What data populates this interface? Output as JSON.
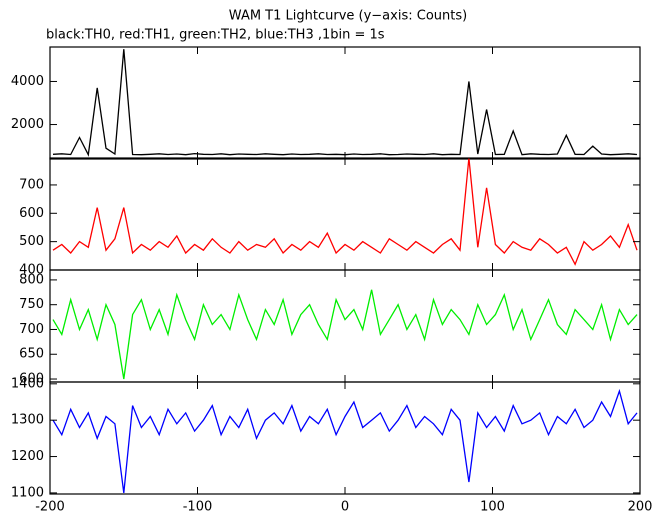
{
  "chart_data": [
    {
      "type": "line",
      "title": "WAM T1 Lightcurve (y−axis: Counts)",
      "subtitle": "black:TH0, red:TH1, green:TH2, blue:TH3 ,1bin = 1s",
      "color": "#000000",
      "xlim": [
        -200,
        200
      ],
      "xticks": [
        -200,
        -100,
        0,
        100,
        200
      ],
      "ylim": [
        400,
        5600
      ],
      "yticks": [
        2000,
        4000
      ],
      "x": [
        -198,
        -192,
        -186,
        -180,
        -174,
        -168,
        -162,
        -156,
        -150,
        -144,
        -138,
        -132,
        -126,
        -120,
        -114,
        -108,
        -102,
        -96,
        -90,
        -84,
        -78,
        -72,
        -66,
        -60,
        -54,
        -48,
        -42,
        -36,
        -30,
        -24,
        -18,
        -12,
        -6,
        0,
        6,
        12,
        18,
        24,
        30,
        36,
        42,
        48,
        54,
        60,
        66,
        72,
        78,
        84,
        90,
        96,
        102,
        108,
        114,
        120,
        126,
        132,
        138,
        144,
        150,
        156,
        162,
        168,
        174,
        180,
        186,
        192,
        198
      ],
      "values": [
        620,
        640,
        610,
        1400,
        600,
        3700,
        900,
        630,
        5500,
        610,
        600,
        620,
        640,
        610,
        630,
        600,
        650,
        620,
        610,
        640,
        600,
        630,
        620,
        610,
        640,
        620,
        600,
        630,
        610,
        620,
        640,
        610,
        620,
        600,
        630,
        610,
        620,
        640,
        600,
        610,
        630,
        620,
        610,
        640,
        600,
        620,
        610,
        4000,
        630,
        2700,
        610,
        620,
        1700,
        600,
        640,
        620,
        610,
        630,
        1500,
        620,
        610,
        1000,
        630,
        600,
        620,
        640,
        610
      ]
    },
    {
      "type": "line",
      "color": "#ff0000",
      "xlim": [
        -200,
        200
      ],
      "xticks": [
        -200,
        -100,
        0,
        100,
        200
      ],
      "ylim": [
        400,
        795
      ],
      "yticks": [
        400,
        500,
        600,
        700
      ],
      "x": [
        -198,
        -192,
        -186,
        -180,
        -174,
        -168,
        -162,
        -156,
        -150,
        -144,
        -138,
        -132,
        -126,
        -120,
        -114,
        -108,
        -102,
        -96,
        -90,
        -84,
        -78,
        -72,
        -66,
        -60,
        -54,
        -48,
        -42,
        -36,
        -30,
        -24,
        -18,
        -12,
        -6,
        0,
        6,
        12,
        18,
        24,
        30,
        36,
        42,
        48,
        54,
        60,
        66,
        72,
        78,
        84,
        90,
        96,
        102,
        108,
        114,
        120,
        126,
        132,
        138,
        144,
        150,
        156,
        162,
        168,
        174,
        180,
        186,
        192,
        198
      ],
      "values": [
        470,
        490,
        460,
        500,
        480,
        620,
        470,
        510,
        620,
        460,
        490,
        470,
        500,
        480,
        520,
        460,
        490,
        470,
        510,
        480,
        460,
        500,
        470,
        490,
        480,
        510,
        460,
        490,
        470,
        500,
        480,
        530,
        460,
        490,
        470,
        500,
        480,
        460,
        510,
        490,
        470,
        500,
        480,
        460,
        490,
        510,
        470,
        795,
        480,
        690,
        490,
        460,
        500,
        480,
        470,
        510,
        490,
        460,
        480,
        420,
        500,
        470,
        490,
        520,
        480,
        560,
        470
      ]
    },
    {
      "type": "line",
      "color": "#00ee00",
      "xlim": [
        -200,
        200
      ],
      "xticks": [
        -200,
        -100,
        0,
        100,
        200
      ],
      "ylim": [
        594,
        820
      ],
      "yticks": [
        600,
        650,
        700,
        750,
        800
      ],
      "x": [
        -198,
        -192,
        -186,
        -180,
        -174,
        -168,
        -162,
        -156,
        -150,
        -144,
        -138,
        -132,
        -126,
        -120,
        -114,
        -108,
        -102,
        -96,
        -90,
        -84,
        -78,
        -72,
        -66,
        -60,
        -54,
        -48,
        -42,
        -36,
        -30,
        -24,
        -18,
        -12,
        -6,
        0,
        6,
        12,
        18,
        24,
        30,
        36,
        42,
        48,
        54,
        60,
        66,
        72,
        78,
        84,
        90,
        96,
        102,
        108,
        114,
        120,
        126,
        132,
        138,
        144,
        150,
        156,
        162,
        168,
        174,
        180,
        186,
        192,
        198
      ],
      "values": [
        720,
        690,
        760,
        700,
        740,
        680,
        750,
        710,
        600,
        730,
        760,
        700,
        740,
        690,
        770,
        720,
        680,
        750,
        710,
        730,
        700,
        770,
        720,
        680,
        740,
        710,
        760,
        690,
        730,
        750,
        710,
        680,
        760,
        720,
        740,
        700,
        780,
        690,
        720,
        750,
        700,
        730,
        680,
        760,
        710,
        740,
        720,
        690,
        750,
        710,
        730,
        770,
        700,
        740,
        680,
        720,
        760,
        710,
        690,
        740,
        720,
        700,
        750,
        680,
        740,
        710,
        730
      ]
    },
    {
      "type": "line",
      "color": "#0000ff",
      "xlim": [
        -200,
        200
      ],
      "xticks": [
        -200,
        -100,
        0,
        100,
        200
      ],
      "ylim": [
        1097,
        1405
      ],
      "yticks": [
        1100,
        1200,
        1300,
        1400
      ],
      "x": [
        -198,
        -192,
        -186,
        -180,
        -174,
        -168,
        -162,
        -156,
        -150,
        -144,
        -138,
        -132,
        -126,
        -120,
        -114,
        -108,
        -102,
        -96,
        -90,
        -84,
        -78,
        -72,
        -66,
        -60,
        -54,
        -48,
        -42,
        -36,
        -30,
        -24,
        -18,
        -12,
        -6,
        0,
        6,
        12,
        18,
        24,
        30,
        36,
        42,
        48,
        54,
        60,
        66,
        72,
        78,
        84,
        90,
        96,
        102,
        108,
        114,
        120,
        126,
        132,
        138,
        144,
        150,
        156,
        162,
        168,
        174,
        180,
        186,
        192,
        198
      ],
      "values": [
        1300,
        1260,
        1330,
        1280,
        1320,
        1250,
        1310,
        1290,
        1100,
        1340,
        1280,
        1310,
        1260,
        1330,
        1290,
        1320,
        1270,
        1300,
        1340,
        1260,
        1310,
        1280,
        1330,
        1250,
        1300,
        1320,
        1290,
        1340,
        1270,
        1310,
        1290,
        1330,
        1260,
        1310,
        1350,
        1280,
        1300,
        1320,
        1270,
        1300,
        1340,
        1280,
        1310,
        1290,
        1260,
        1330,
        1300,
        1130,
        1320,
        1280,
        1310,
        1270,
        1340,
        1290,
        1300,
        1320,
        1260,
        1310,
        1290,
        1330,
        1280,
        1300,
        1350,
        1310,
        1380,
        1290,
        1320
      ]
    }
  ]
}
